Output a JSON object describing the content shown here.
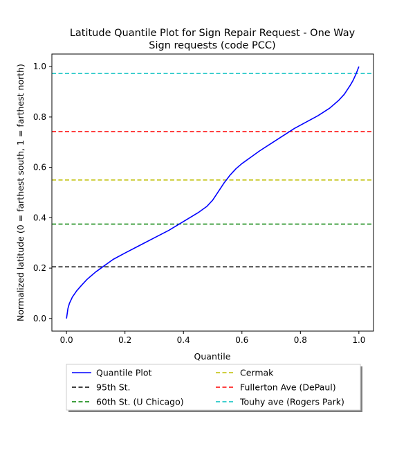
{
  "chart_data": {
    "type": "line",
    "title_line1": "Latitude Quantile Plot for Sign Repair Request - One Way",
    "title_line2": "Sign  requests (code PCC)",
    "xlabel": "Quantile",
    "ylabel": "Normalized latitude (0 = farthest south, 1 = farthest north)",
    "xlim": [
      -0.05,
      1.05
    ],
    "ylim": [
      -0.05,
      1.05
    ],
    "xticks": [
      0.0,
      0.2,
      0.4,
      0.6,
      0.8,
      1.0
    ],
    "yticks": [
      0.0,
      0.2,
      0.4,
      0.6,
      0.8,
      1.0
    ],
    "xtick_labels": [
      "0.0",
      "0.2",
      "0.4",
      "0.6",
      "0.8",
      "1.0"
    ],
    "ytick_labels": [
      "0.0",
      "0.2",
      "0.4",
      "0.6",
      "0.8",
      "1.0"
    ],
    "grid": false,
    "legend_position": "below plot, two columns",
    "quantile_series": {
      "name": "Quantile Plot",
      "color": "#0000ff",
      "x": [
        0.0,
        0.005,
        0.01,
        0.02,
        0.035,
        0.05,
        0.07,
        0.1,
        0.13,
        0.16,
        0.2,
        0.25,
        0.3,
        0.35,
        0.4,
        0.45,
        0.48,
        0.5,
        0.52,
        0.54,
        0.56,
        0.58,
        0.6,
        0.63,
        0.66,
        0.7,
        0.74,
        0.78,
        0.82,
        0.86,
        0.9,
        0.93,
        0.95,
        0.97,
        0.98,
        0.99,
        0.995,
        1.0
      ],
      "y": [
        0.0,
        0.04,
        0.06,
        0.085,
        0.11,
        0.13,
        0.155,
        0.185,
        0.21,
        0.235,
        0.26,
        0.29,
        0.32,
        0.35,
        0.385,
        0.42,
        0.445,
        0.47,
        0.505,
        0.54,
        0.57,
        0.595,
        0.615,
        0.64,
        0.665,
        0.695,
        0.725,
        0.755,
        0.78,
        0.805,
        0.835,
        0.865,
        0.89,
        0.925,
        0.945,
        0.97,
        0.985,
        1.0
      ]
    },
    "reference_lines": [
      {
        "name": "95th St.",
        "y": 0.205,
        "color": "#000000"
      },
      {
        "name": "60th St. (U Chicago)",
        "y": 0.375,
        "color": "#008000"
      },
      {
        "name": "Cermak",
        "y": 0.55,
        "color": "#bfbf00"
      },
      {
        "name": "Fullerton Ave (DePaul)",
        "y": 0.742,
        "color": "#ff0000"
      },
      {
        "name": "Touhy ave (Rogers Park)",
        "y": 0.973,
        "color": "#00bfbf"
      }
    ]
  }
}
